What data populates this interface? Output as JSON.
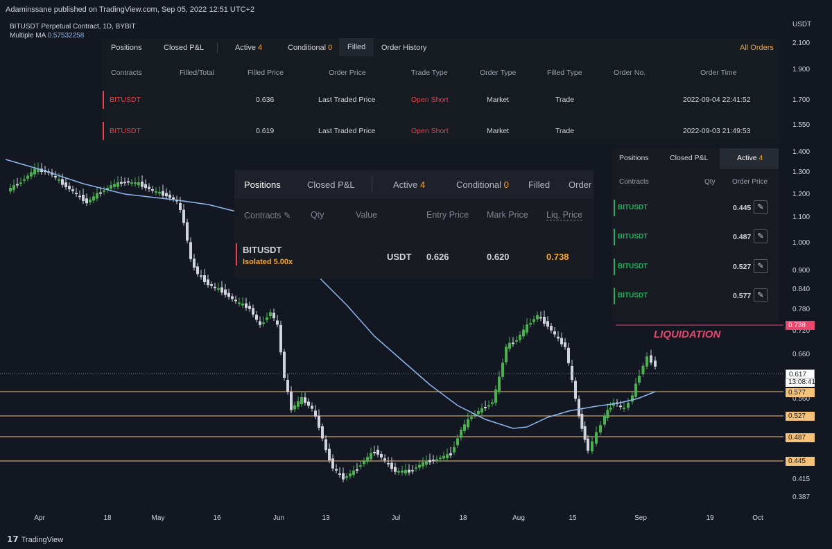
{
  "header": {
    "published": "Adaminssane published on TradingView.com, Sep 05, 2022 12:51 UTC+2",
    "symbol_line": "BITUSDT Perpetual Contract, 1D, BYBIT",
    "ma_label": "Multiple MA",
    "ma_value": "0.57532258"
  },
  "axis": {
    "currency": "USDT",
    "y_ticks": [
      "2.100",
      "1.900",
      "1.700",
      "1.550",
      "1.400",
      "1.300",
      "1.200",
      "1.100",
      "1.000",
      "0.900",
      "0.840",
      "0.780",
      "0.720",
      "0.660",
      "0.560",
      "0.415",
      "0.387"
    ],
    "x_ticks": [
      "Apr",
      "18",
      "May",
      "16",
      "Jun",
      "13",
      "Jul",
      "18",
      "Aug",
      "15",
      "Sep",
      "19",
      "Oct"
    ]
  },
  "price_labels": {
    "liq": "0.738",
    "current": "0.617",
    "countdown": "13:08:41",
    "levels": [
      "0.577",
      "0.527",
      "0.487",
      "0.445"
    ]
  },
  "annotation": {
    "liquidation": "LIQUIDATION"
  },
  "colors": {
    "bull": "#4caf50",
    "bear": "#d1d4dc",
    "ma": "#8fb8f0",
    "level": "#f5c27a",
    "liq": "#e8466d",
    "accent": "#f7a633"
  },
  "order_history_panel": {
    "tabs": {
      "positions": "Positions",
      "closed_pnl": "Closed P&L",
      "active": "Active",
      "active_count": "4",
      "conditional": "Conditional",
      "conditional_count": "0",
      "filled": "Filled",
      "order_history": "Order History",
      "all_orders": "All Orders"
    },
    "columns": [
      "Contracts",
      "Filled/Total",
      "Filled Price",
      "Order Price",
      "Trade Type",
      "Order Type",
      "Filled Type",
      "Order No.",
      "Order Time"
    ],
    "rows": [
      {
        "contract": "BITUSDT",
        "filled_price": "0.636",
        "order_price": "Last Traded Price",
        "trade_type": "Open Short",
        "order_type": "Market",
        "filled_type": "Trade",
        "time": "2022-09-04 22:41:52"
      },
      {
        "contract": "BITUSDT",
        "filled_price": "0.619",
        "order_price": "Last Traded Price",
        "trade_type": "Open Short",
        "order_type": "Market",
        "filled_type": "Trade",
        "time": "2022-09-03 21:49:53"
      }
    ]
  },
  "positions_panel": {
    "tabs": {
      "positions": "Positions",
      "closed_pnl": "Closed P&L",
      "active": "Active",
      "active_count": "4",
      "conditional": "Conditional",
      "conditional_count": "0",
      "filled": "Filled",
      "order": "Order"
    },
    "columns": {
      "contracts": "Contracts",
      "qty": "Qty",
      "value": "Value",
      "entry": "Entry Price",
      "mark": "Mark Price",
      "liq": "Liq. Price"
    },
    "row": {
      "contract": "BITUSDT",
      "mode": "Isolated 5.00x",
      "value": "USDT",
      "entry": "0.626",
      "mark": "0.620",
      "liq": "0.738"
    }
  },
  "active_panel": {
    "tabs": {
      "positions": "Positions",
      "closed_pnl": "Closed P&L",
      "active": "Active",
      "active_count": "4"
    },
    "columns": {
      "contracts": "Contracts",
      "qty": "Qty",
      "price": "Order Price"
    },
    "rows": [
      {
        "contract": "BITUSDT",
        "price": "0.445"
      },
      {
        "contract": "BITUSDT",
        "price": "0.487"
      },
      {
        "contract": "BITUSDT",
        "price": "0.527"
      },
      {
        "contract": "BITUSDT",
        "price": "0.577"
      }
    ]
  },
  "footer": {
    "brand": "TradingView"
  }
}
